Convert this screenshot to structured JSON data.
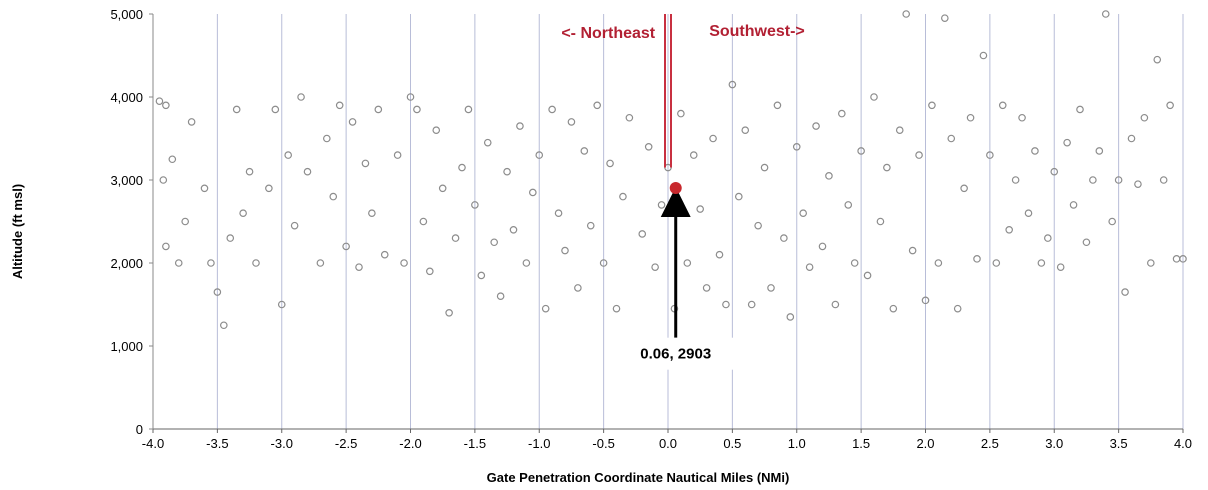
{
  "chart_data": {
    "type": "scatter",
    "title": "",
    "xlabel": "Gate Penetration Coordinate Nautical Miles (NMi)",
    "ylabel": "Altitude (ft msl)",
    "xlim": [
      -4.0,
      4.0
    ],
    "ylim": [
      0,
      5000
    ],
    "x_ticks": [
      "-4.0",
      "-3.5",
      "-3.0",
      "-2.5",
      "-2.0",
      "-1.5",
      "-1.0",
      "-0.5",
      "0.0",
      "0.5",
      "1.0",
      "1.5",
      "2.0",
      "2.5",
      "3.0",
      "3.5",
      "4.0"
    ],
    "x_tick_values": [
      -4.0,
      -3.5,
      -3.0,
      -2.5,
      -2.0,
      -1.5,
      -1.0,
      -0.5,
      0.0,
      0.5,
      1.0,
      1.5,
      2.0,
      2.5,
      3.0,
      3.5,
      4.0
    ],
    "y_ticks": [
      "0",
      "1,000",
      "2,000",
      "3,000",
      "4,000",
      "5,000"
    ],
    "y_tick_values": [
      0,
      1000,
      2000,
      3000,
      4000,
      5000
    ],
    "grid": "vertical",
    "annotations": {
      "left_direction": "<- Northeast",
      "right_direction": "Southwest->",
      "callout": "0.06, 2903"
    },
    "highlight_point": {
      "x": 0.06,
      "y": 2903
    },
    "colors": {
      "points": "#8c8c8c",
      "highlight": "#c8282d",
      "direction_text": "#b22033",
      "gate_line": "#c83040",
      "grid": "#b8bdd8"
    },
    "series": [
      {
        "points": [
          [
            -3.95,
            3950
          ],
          [
            -3.9,
            3900
          ],
          [
            -3.92,
            3000
          ],
          [
            -3.85,
            3250
          ],
          [
            -3.8,
            2000
          ],
          [
            -3.75,
            2500
          ],
          [
            -3.9,
            2200
          ],
          [
            -3.7,
            3700
          ],
          [
            -3.6,
            2900
          ],
          [
            -3.55,
            2000
          ],
          [
            -3.5,
            1650
          ],
          [
            -3.45,
            1250
          ],
          [
            -3.4,
            2300
          ],
          [
            -3.35,
            3850
          ],
          [
            -3.3,
            2600
          ],
          [
            -3.25,
            3100
          ],
          [
            -3.2,
            2000
          ],
          [
            -3.1,
            2900
          ],
          [
            -3.05,
            3850
          ],
          [
            -3.0,
            1500
          ],
          [
            -2.95,
            3300
          ],
          [
            -2.9,
            2450
          ],
          [
            -2.85,
            4000
          ],
          [
            -2.8,
            3100
          ],
          [
            -2.7,
            2000
          ],
          [
            -2.65,
            3500
          ],
          [
            -2.6,
            2800
          ],
          [
            -2.55,
            3900
          ],
          [
            -2.5,
            2200
          ],
          [
            -2.45,
            3700
          ],
          [
            -2.4,
            1950
          ],
          [
            -2.35,
            3200
          ],
          [
            -2.3,
            2600
          ],
          [
            -2.25,
            3850
          ],
          [
            -2.2,
            2100
          ],
          [
            -2.1,
            3300
          ],
          [
            -2.05,
            2000
          ],
          [
            -2.0,
            4000
          ],
          [
            -1.95,
            3850
          ],
          [
            -1.9,
            2500
          ],
          [
            -1.85,
            1900
          ],
          [
            -1.8,
            3600
          ],
          [
            -1.75,
            2900
          ],
          [
            -1.7,
            1400
          ],
          [
            -1.65,
            2300
          ],
          [
            -1.6,
            3150
          ],
          [
            -1.55,
            3850
          ],
          [
            -1.5,
            2700
          ],
          [
            -1.45,
            1850
          ],
          [
            -1.4,
            3450
          ],
          [
            -1.35,
            2250
          ],
          [
            -1.3,
            1600
          ],
          [
            -1.25,
            3100
          ],
          [
            -1.2,
            2400
          ],
          [
            -1.15,
            3650
          ],
          [
            -1.1,
            2000
          ],
          [
            -1.05,
            2850
          ],
          [
            -1.0,
            3300
          ],
          [
            -0.95,
            1450
          ],
          [
            -0.9,
            3850
          ],
          [
            -0.85,
            2600
          ],
          [
            -0.8,
            2150
          ],
          [
            -0.75,
            3700
          ],
          [
            -0.7,
            1700
          ],
          [
            -0.65,
            3350
          ],
          [
            -0.6,
            2450
          ],
          [
            -0.55,
            3900
          ],
          [
            -0.5,
            2000
          ],
          [
            -0.45,
            3200
          ],
          [
            -0.4,
            1450
          ],
          [
            -0.35,
            2800
          ],
          [
            -0.3,
            3750
          ],
          [
            -0.25,
            1000
          ],
          [
            -0.2,
            2350
          ],
          [
            -0.15,
            3400
          ],
          [
            -0.1,
            1950
          ],
          [
            -0.05,
            2700
          ],
          [
            0.0,
            3150
          ],
          [
            0.05,
            1450
          ],
          [
            0.1,
            3800
          ],
          [
            0.15,
            2000
          ],
          [
            0.2,
            3300
          ],
          [
            0.25,
            2650
          ],
          [
            0.3,
            1700
          ],
          [
            0.35,
            3500
          ],
          [
            0.4,
            2100
          ],
          [
            0.45,
            1500
          ],
          [
            0.5,
            4150
          ],
          [
            0.55,
            2800
          ],
          [
            0.6,
            3600
          ],
          [
            0.65,
            1500
          ],
          [
            0.7,
            2450
          ],
          [
            0.75,
            3150
          ],
          [
            0.8,
            1700
          ],
          [
            0.85,
            3900
          ],
          [
            0.9,
            2300
          ],
          [
            0.95,
            1350
          ],
          [
            1.0,
            3400
          ],
          [
            1.05,
            2600
          ],
          [
            1.1,
            1950
          ],
          [
            1.15,
            3650
          ],
          [
            1.2,
            2200
          ],
          [
            1.25,
            3050
          ],
          [
            1.3,
            1500
          ],
          [
            1.35,
            3800
          ],
          [
            1.4,
            2700
          ],
          [
            1.45,
            2000
          ],
          [
            1.5,
            3350
          ],
          [
            1.55,
            1850
          ],
          [
            1.6,
            4000
          ],
          [
            1.65,
            2500
          ],
          [
            1.7,
            3150
          ],
          [
            1.75,
            1450
          ],
          [
            1.8,
            3600
          ],
          [
            1.85,
            5000
          ],
          [
            1.9,
            2150
          ],
          [
            1.95,
            3300
          ],
          [
            2.0,
            1550
          ],
          [
            2.05,
            3900
          ],
          [
            2.1,
            2000
          ],
          [
            2.15,
            4950
          ],
          [
            2.2,
            3500
          ],
          [
            2.25,
            1450
          ],
          [
            2.3,
            2900
          ],
          [
            2.35,
            3750
          ],
          [
            2.4,
            2050
          ],
          [
            2.45,
            4500
          ],
          [
            2.5,
            3300
          ],
          [
            2.55,
            2000
          ],
          [
            2.6,
            3900
          ],
          [
            2.65,
            2400
          ],
          [
            2.7,
            3000
          ],
          [
            2.75,
            3750
          ],
          [
            2.8,
            2600
          ],
          [
            2.85,
            3350
          ],
          [
            2.9,
            2000
          ],
          [
            2.95,
            2300
          ],
          [
            3.0,
            3100
          ],
          [
            3.05,
            1950
          ],
          [
            3.1,
            3450
          ],
          [
            3.15,
            2700
          ],
          [
            3.2,
            3850
          ],
          [
            3.25,
            2250
          ],
          [
            3.3,
            3000
          ],
          [
            3.35,
            3350
          ],
          [
            3.4,
            5000
          ],
          [
            3.45,
            2500
          ],
          [
            3.5,
            3000
          ],
          [
            3.55,
            1650
          ],
          [
            3.6,
            3500
          ],
          [
            3.65,
            2950
          ],
          [
            3.7,
            3750
          ],
          [
            3.75,
            2000
          ],
          [
            3.8,
            4450
          ],
          [
            3.85,
            3000
          ],
          [
            3.9,
            3900
          ],
          [
            3.95,
            2050
          ],
          [
            4.0,
            2050
          ]
        ]
      }
    ]
  }
}
